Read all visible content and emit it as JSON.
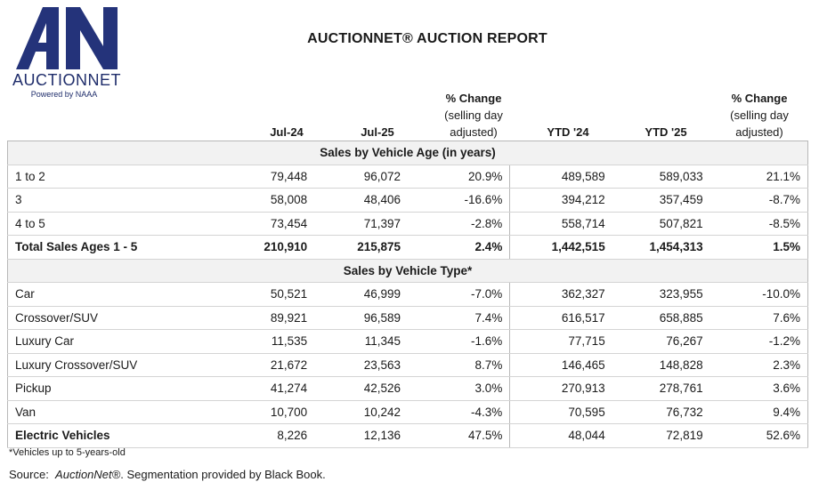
{
  "logo": {
    "mark": "AN",
    "name": "AUCTIONNET",
    "tagline": "Powered by NAAA"
  },
  "title": "AUCTIONNET® AUCTION REPORT",
  "headers": {
    "col1": "Jul-24",
    "col2": "Jul-25",
    "pct1_line1": "% Change",
    "pct1_line2": "(selling day",
    "pct1_line3": "adjusted)",
    "col4": "YTD '24",
    "col5": "YTD '25",
    "pct2_line1": "% Change",
    "pct2_line2": "(selling day",
    "pct2_line3": "adjusted)"
  },
  "sections": {
    "age": "Sales by Vehicle Age (in years)",
    "type": "Sales by Vehicle Type*"
  },
  "age_rows": [
    [
      "1 to 2",
      "79,448",
      "96,072",
      "20.9%",
      "489,589",
      "589,033",
      "21.1%"
    ],
    [
      "3",
      "58,008",
      "48,406",
      "-16.6%",
      "394,212",
      "357,459",
      "-8.7%"
    ],
    [
      "4 to 5",
      "73,454",
      "71,397",
      "-2.8%",
      "558,714",
      "507,821",
      "-8.5%"
    ]
  ],
  "total_row": [
    "Total Sales Ages 1 - 5",
    "210,910",
    "215,875",
    "2.4%",
    "1,442,515",
    "1,454,313",
    "1.5%"
  ],
  "type_rows": [
    [
      "Car",
      "50,521",
      "46,999",
      "-7.0%",
      "362,327",
      "323,955",
      "-10.0%"
    ],
    [
      "Crossover/SUV",
      "89,921",
      "96,589",
      "7.4%",
      "616,517",
      "658,885",
      "7.6%"
    ],
    [
      "Luxury Car",
      "11,535",
      "11,345",
      "-1.6%",
      "77,715",
      "76,267",
      "-1.2%"
    ],
    [
      "Luxury Crossover/SUV",
      "21,672",
      "23,563",
      "8.7%",
      "146,465",
      "148,828",
      "2.3%"
    ],
    [
      "Pickup",
      "41,274",
      "42,526",
      "3.0%",
      "270,913",
      "278,761",
      "3.6%"
    ],
    [
      "Van",
      "10,700",
      "10,242",
      "-4.3%",
      "70,595",
      "76,732",
      "9.4%"
    ]
  ],
  "ev_row": [
    "Electric Vehicles",
    "8,226",
    "12,136",
    "47.5%",
    "48,044",
    "72,819",
    "52.6%"
  ],
  "footnote": "*Vehicles up to 5-years-old",
  "source": {
    "prefix": "Source:",
    "name": "AuctionNet®",
    "suffix": ". Segmentation provided by Black Book."
  }
}
